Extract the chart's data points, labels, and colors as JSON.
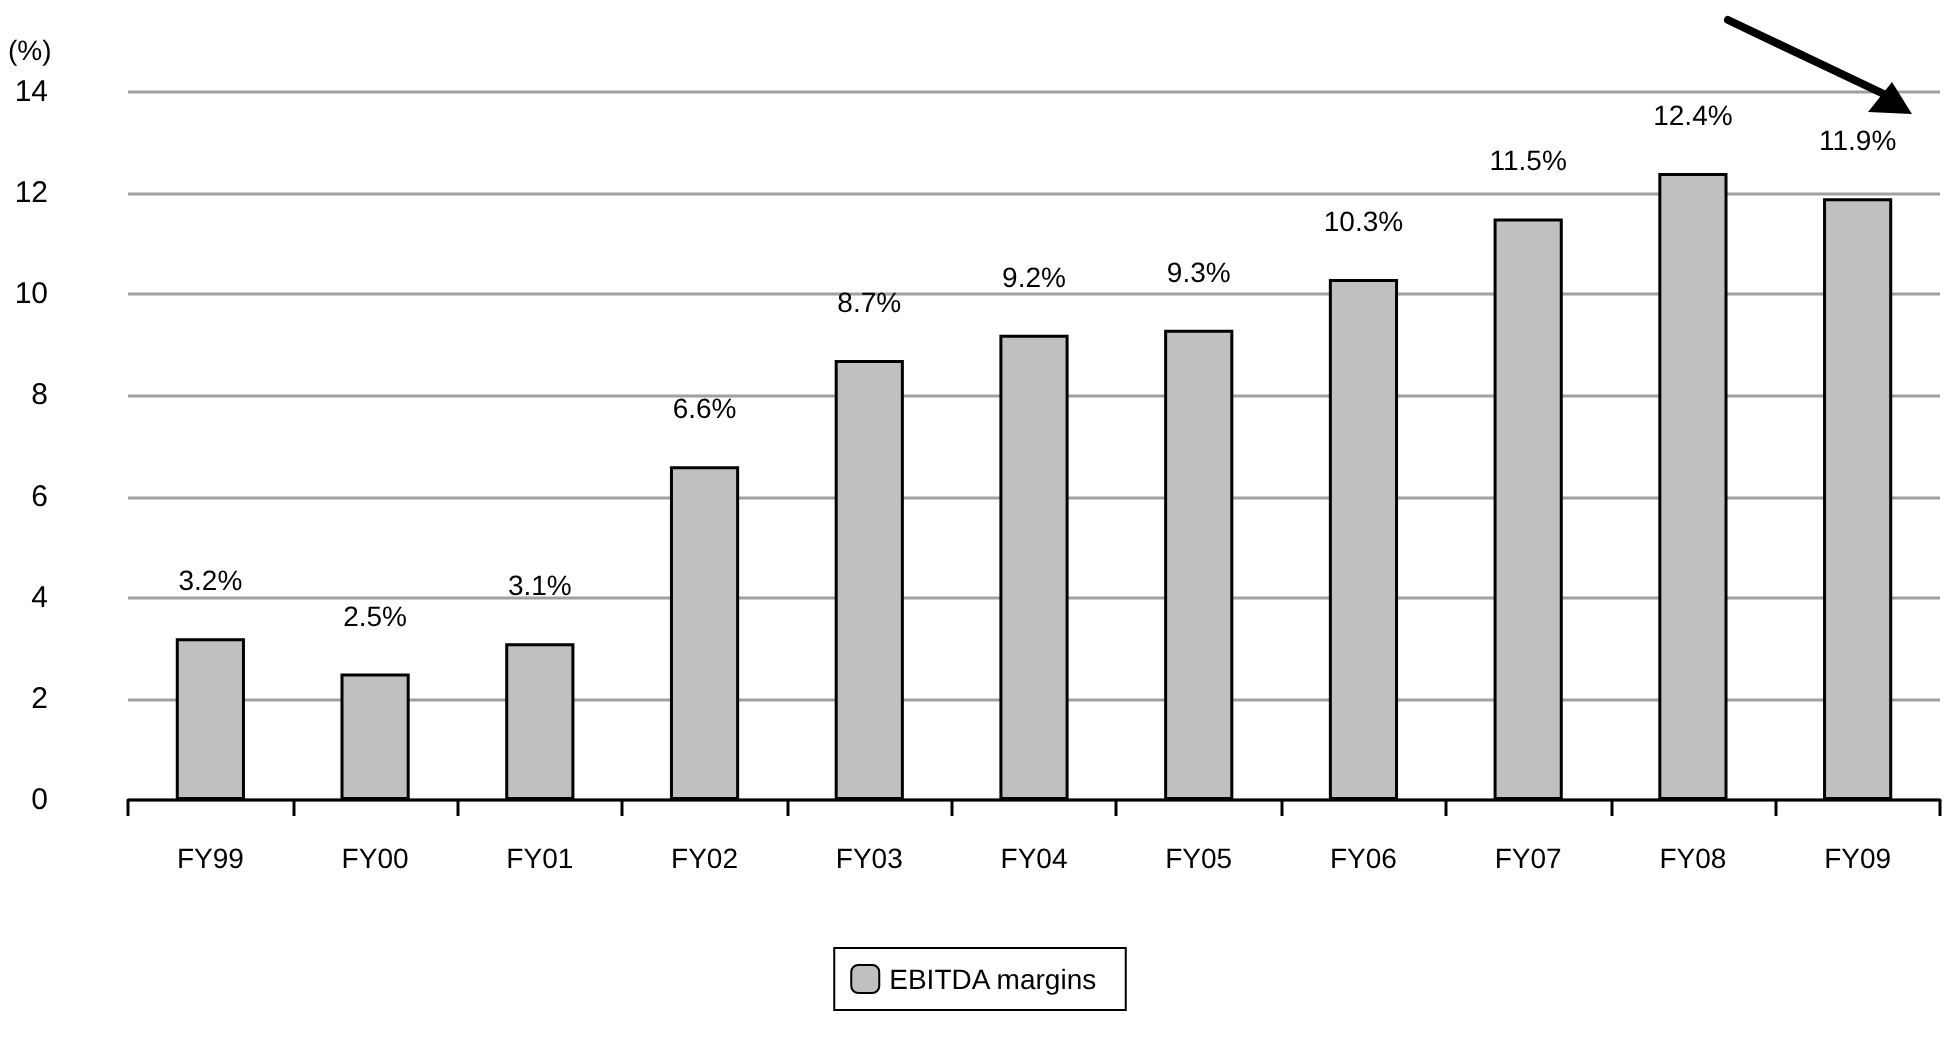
{
  "chart_data": {
    "type": "bar",
    "ylabel": "(%)",
    "categories": [
      "FY99",
      "FY00",
      "FY01",
      "FY02",
      "FY03",
      "FY04",
      "FY05",
      "FY06",
      "FY07",
      "FY08",
      "FY09"
    ],
    "series": [
      {
        "name": "EBITDA margins",
        "color": "#c0c0c0",
        "values": [
          3.2,
          2.5,
          3.1,
          6.6,
          8.7,
          9.2,
          9.3,
          10.3,
          11.5,
          12.4,
          11.9
        ],
        "value_labels": [
          "3.2%",
          "2.5%",
          "3.1%",
          "6.6%",
          "8.7%",
          "9.2%",
          "9.3%",
          "10.3%",
          "11.5%",
          "12.4%",
          "11.9%"
        ]
      }
    ],
    "ylim": [
      0,
      14
    ],
    "yticks": [
      0,
      2,
      4,
      6,
      8,
      10,
      12,
      14
    ],
    "grid": "y",
    "legend": "bottom"
  }
}
